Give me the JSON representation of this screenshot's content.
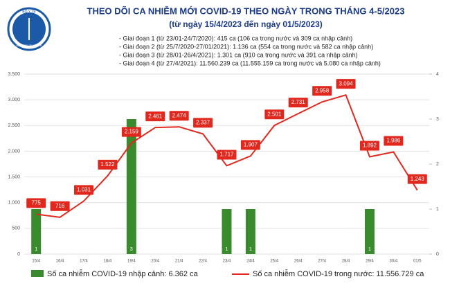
{
  "logo": {
    "top": "BỘ Y TẾ",
    "bottom": "MINISTRY OF HEALTH"
  },
  "chart_data": {
    "type": "bar-line",
    "title": "THEO DÕI CA NHIỄM MỚI COVID-19 THEO NGÀY TRONG THÁNG 4-5/2023",
    "subtitle": "(từ ngày 15/4/2023 đến ngày 01/5/2023)",
    "notes": [
      "- Giai đoạn 1 (từ 23/01-24/7/2020): 415 ca (106 ca trong nước và 309 ca nhập cảnh)",
      "- Giai đoạn 2 (từ 25/7/2020-27/01/2021): 1.136 ca (554 ca trong nước và 582 ca nhập cảnh)",
      "- Giai đoạn 3 (từ 28/01-26/4/2021): 1.301 ca (910 ca trong nước và 391 ca nhập cảnh)",
      "- Giai đoạn 4 (từ 27/4/2021): 11.560.239 ca (11.555.159 ca trong nước và 5.080 ca nhập cảnh)"
    ],
    "categories": [
      "15/4",
      "16/4",
      "17/4",
      "18/4",
      "19/4",
      "20/4",
      "21/4",
      "22/4",
      "23/4",
      "24/4",
      "25/4",
      "26/4",
      "27/4",
      "28/4",
      "29/4",
      "30/4",
      "01/5"
    ],
    "series": [
      {
        "name": "Số ca nhiễm COVID-19 nhập cảnh: 6.362 ca",
        "color": "#3a8a2e",
        "axis": "y2",
        "type": "bar",
        "values": [
          1,
          0,
          0,
          0,
          3,
          0,
          0,
          0,
          1,
          1,
          0,
          0,
          0,
          0,
          1,
          0,
          0
        ]
      },
      {
        "name": "Số ca nhiễm COVID-19 trong nước: 11.556.729 ca",
        "color": "#e0281e",
        "type": "line",
        "values": [
          775,
          716,
          1031,
          1522,
          2159,
          2461,
          2474,
          2337,
          1717,
          1907,
          2501,
          2731,
          2958,
          3094,
          1892,
          1986,
          1243
        ],
        "value_labels": [
          "775",
          "716",
          "1.031",
          "1.522",
          "2.159",
          "2.461",
          "2.474",
          "2.337",
          "1.717",
          "1.907",
          "2.501",
          "2.731",
          "2.958",
          "3.094",
          "1.892",
          "1.986",
          "1.243"
        ]
      }
    ],
    "ylim": [
      0,
      3500
    ],
    "yticks": [
      0,
      500,
      {
        "value": 1000,
        "label": "1.000"
      },
      {
        "value": 1500,
        "label": "1.500"
      },
      {
        "value": 2000,
        "label": "2.000"
      },
      {
        "value": 2500,
        "label": "2.500"
      },
      {
        "value": 3000,
        "label": "3.000"
      },
      {
        "value": 3500,
        "label": "3.500"
      }
    ],
    "y2lim": [
      0,
      4
    ],
    "y2ticks": [
      0,
      1,
      2,
      3,
      4
    ],
    "grid": true
  }
}
